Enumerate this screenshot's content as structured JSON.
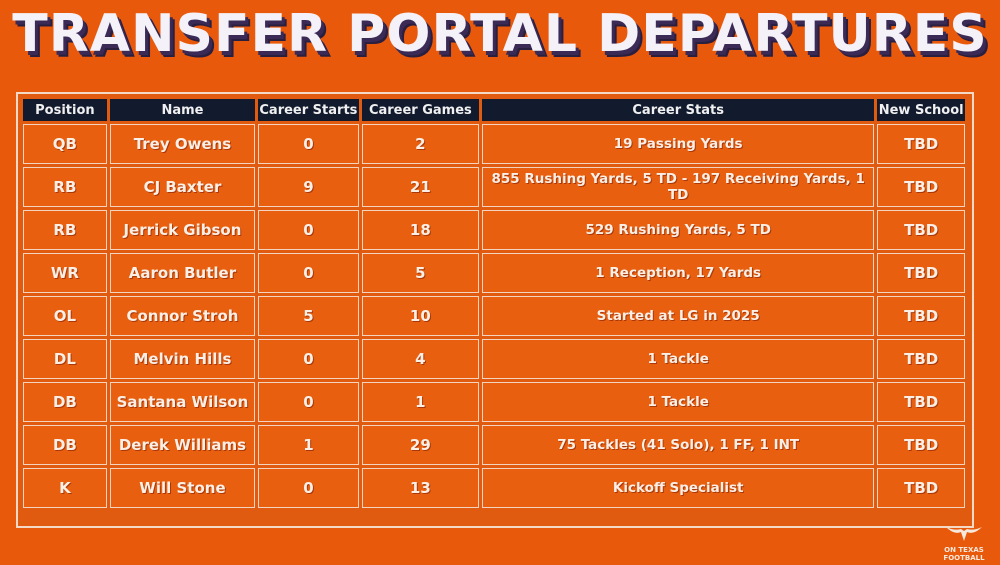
{
  "title": "TRANSFER PORTAL DEPARTURES",
  "columns": [
    "Position",
    "Name",
    "Career Starts",
    "Career Games",
    "Career Stats",
    "New School"
  ],
  "rows": [
    {
      "position": "QB",
      "name": "Trey Owens",
      "starts": "0",
      "games": "2",
      "stats": "19 Passing Yards",
      "school": "TBD"
    },
    {
      "position": "RB",
      "name": "CJ Baxter",
      "starts": "9",
      "games": "21",
      "stats": "855 Rushing Yards, 5 TD - 197 Receiving Yards, 1 TD",
      "school": "TBD"
    },
    {
      "position": "RB",
      "name": "Jerrick Gibson",
      "starts": "0",
      "games": "18",
      "stats": "529 Rushing Yards, 5 TD",
      "school": "TBD"
    },
    {
      "position": "WR",
      "name": "Aaron Butler",
      "starts": "0",
      "games": "5",
      "stats": "1 Reception, 17 Yards",
      "school": "TBD"
    },
    {
      "position": "OL",
      "name": "Connor Stroh",
      "starts": "5",
      "games": "10",
      "stats": "Started at LG in 2025",
      "school": "TBD"
    },
    {
      "position": "DL",
      "name": "Melvin Hills",
      "starts": "0",
      "games": "4",
      "stats": "1 Tackle",
      "school": "TBD"
    },
    {
      "position": "DB",
      "name": "Santana Wilson",
      "starts": "0",
      "games": "1",
      "stats": "1 Tackle",
      "school": "TBD"
    },
    {
      "position": "DB",
      "name": "Derek Williams",
      "starts": "1",
      "games": "29",
      "stats": "75 Tackles (41 Solo), 1 FF, 1 INT",
      "school": "TBD"
    },
    {
      "position": "K",
      "name": "Will Stone",
      "starts": "0",
      "games": "13",
      "stats": "Kickoff Specialist",
      "school": "TBD"
    }
  ],
  "logo": {
    "icon": "longhorn-icon",
    "text_line1": "ON TEXAS",
    "text_line2": "FOOTBALL"
  },
  "colors": {
    "background": "#e8590c",
    "header": "#121a2e",
    "title": "#f4f1f8"
  }
}
